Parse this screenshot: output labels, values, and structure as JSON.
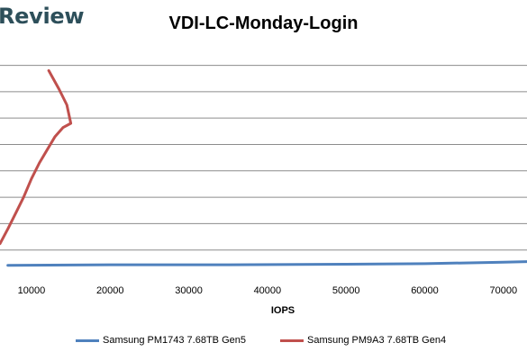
{
  "brand": {
    "text": "Review"
  },
  "chart_data": {
    "type": "line",
    "title": "VDI-LC-Monday-Login",
    "xlabel": "IOPS",
    "ylabel": "",
    "xlim": [
      6000,
      73000
    ],
    "ylim": [
      0,
      4.3
    ],
    "x_ticks": [
      10000,
      20000,
      30000,
      40000,
      50000,
      60000,
      70000
    ],
    "x_tick_labels": [
      "10000",
      "20000",
      "30000",
      "40000",
      "50000",
      "60000",
      "70000"
    ],
    "y_gridlines": [
      0.5,
      1,
      1.5,
      2,
      2.5,
      3,
      3.5,
      4
    ],
    "grid": true,
    "legend_position": "bottom",
    "series": [
      {
        "name": "Samsung PM1743 7.68TB Gen5",
        "color": "#4f81bd",
        "points": [
          [
            7000,
            0.21
          ],
          [
            20000,
            0.22
          ],
          [
            35000,
            0.22
          ],
          [
            50000,
            0.23
          ],
          [
            60000,
            0.24
          ],
          [
            70000,
            0.27
          ],
          [
            73000,
            0.28
          ]
        ]
      },
      {
        "name": "Samsung PM9A3 7.68TB Gen4",
        "color": "#c0504d",
        "points": [
          [
            6000,
            0.62
          ],
          [
            7000,
            0.9
          ],
          [
            8000,
            1.2
          ],
          [
            9000,
            1.5
          ],
          [
            10000,
            1.85
          ],
          [
            11000,
            2.15
          ],
          [
            12000,
            2.4
          ],
          [
            13000,
            2.65
          ],
          [
            14000,
            2.82
          ],
          [
            15000,
            2.9
          ],
          [
            14500,
            3.25
          ],
          [
            13500,
            3.55
          ],
          [
            12200,
            3.9
          ]
        ]
      }
    ]
  }
}
